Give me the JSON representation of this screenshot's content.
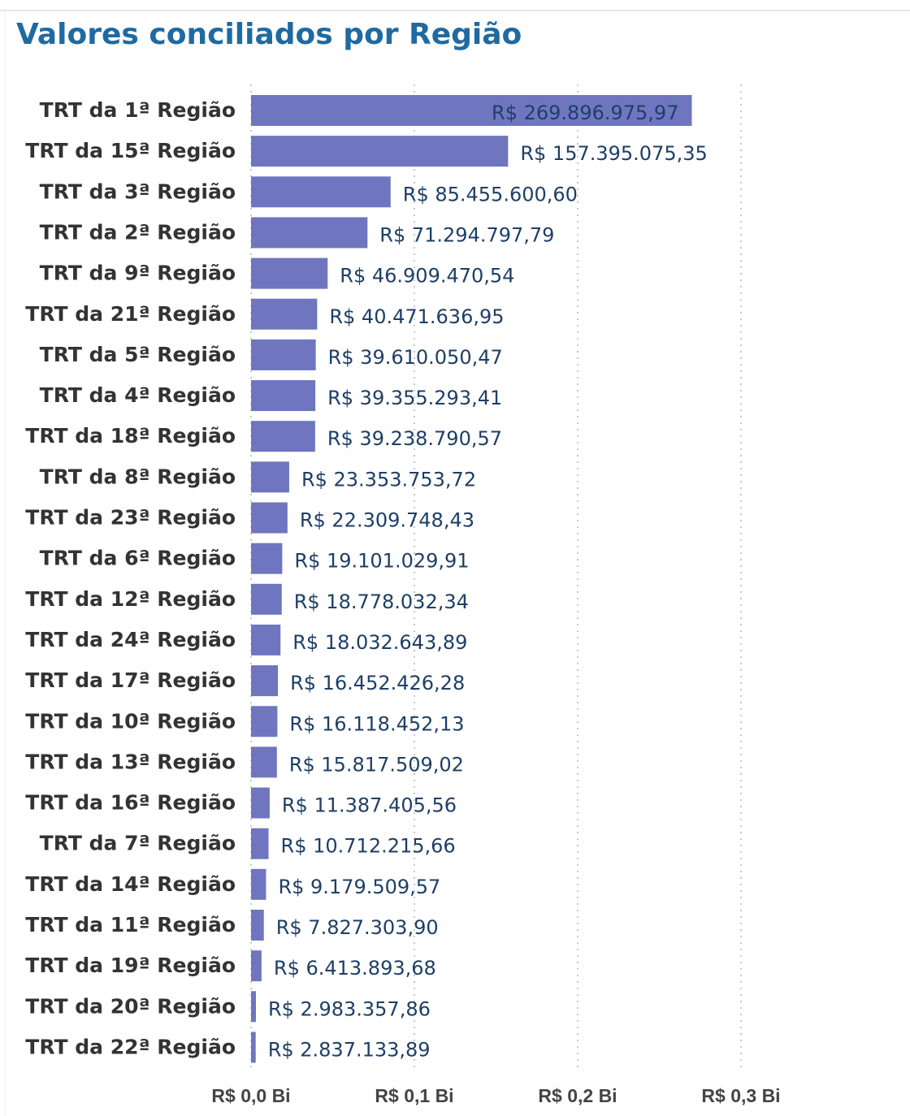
{
  "chart_data": {
    "type": "bar",
    "orientation": "horizontal",
    "title": "Valores conciliados por Região",
    "categories": [
      "TRT da 1ª Região",
      "TRT da 15ª Região",
      "TRT da 3ª Região",
      "TRT da 2ª Região",
      "TRT da 9ª Região",
      "TRT da 21ª Região",
      "TRT da 5ª Região",
      "TRT da 4ª Região",
      "TRT da 18ª Região",
      "TRT da 8ª Região",
      "TRT da 23ª Região",
      "TRT da 6ª Região",
      "TRT da 12ª Região",
      "TRT da 24ª Região",
      "TRT da 17ª Região",
      "TRT da 10ª Região",
      "TRT da 13ª Região",
      "TRT da 16ª Região",
      "TRT da 7ª Região",
      "TRT da 14ª Região",
      "TRT da 11ª Região",
      "TRT da 19ª Região",
      "TRT da 20ª Região",
      "TRT da 22ª Região"
    ],
    "values": [
      269896975.97,
      157395075.35,
      85455600.6,
      71294797.79,
      46909470.54,
      40471636.95,
      39610050.47,
      39355293.41,
      39238790.57,
      23353753.72,
      22309748.43,
      19101029.91,
      18778032.34,
      18032643.89,
      16452426.28,
      16118452.13,
      15817509.02,
      11387405.56,
      10712215.66,
      9179509.57,
      7827303.9,
      6413893.68,
      2983357.86,
      2837133.89
    ],
    "value_labels": [
      "R$ 269.896.975,97",
      "R$ 157.395.075,35",
      "R$ 85.455.600,60",
      "R$ 71.294.797,79",
      "R$ 46.909.470,54",
      "R$ 40.471.636,95",
      "R$ 39.610.050,47",
      "R$ 39.355.293,41",
      "R$ 39.238.790,57",
      "R$ 23.353.753,72",
      "R$ 22.309.748,43",
      "R$ 19.101.029,91",
      "R$ 18.778.032,34",
      "R$ 18.032.643,89",
      "R$ 16.452.426,28",
      "R$ 16.118.452,13",
      "R$ 15.817.509,02",
      "R$ 11.387.405,56",
      "R$ 10.712.215,66",
      "R$ 9.179.509,57",
      "R$ 7.827.303,90",
      "R$ 6.413.893,68",
      "R$ 2.983.357,86",
      "R$ 2.837.133,89"
    ],
    "xlim": [
      0,
      300000000
    ],
    "xticks": [
      0,
      100000000,
      200000000,
      300000000
    ],
    "xtick_labels": [
      "R$ 0,0 Bi",
      "R$ 0,1 Bi",
      "R$ 0,2 Bi",
      "R$ 0,3 Bi"
    ],
    "grid": "vertical dotted",
    "bar_color": "#6f76bf"
  }
}
